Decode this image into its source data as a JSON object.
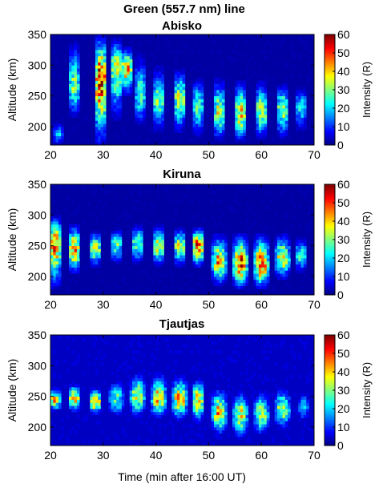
{
  "figure": {
    "title": "Green (557.7 nm) line",
    "xlabel": "Time (min after 16:00 UT)",
    "ylabel": "Altitude (km)",
    "colorbar_label": "Intensity (R)"
  },
  "chart_data": [
    {
      "type": "heatmap",
      "title": "Abisko",
      "xlabel": "",
      "ylabel": "Altitude (km)",
      "xlim": [
        20,
        70
      ],
      "ylim": [
        170,
        350
      ],
      "xticks": [
        20,
        30,
        40,
        50,
        60,
        70
      ],
      "yticks": [
        200,
        250,
        300,
        350
      ],
      "colorbar": {
        "label": "Intensity (R)",
        "range": [
          0,
          60
        ],
        "ticks": [
          0,
          10,
          20,
          30,
          40,
          50,
          60
        ],
        "colormap": "jet"
      },
      "background_level": 2,
      "bursts": [
        {
          "t": 21.5,
          "width": 1.0,
          "alt_lo": 170,
          "alt_hi": 210,
          "peak": 22,
          "peak_alt": 185
        },
        {
          "t": 24.5,
          "width": 1.4,
          "alt_lo": 215,
          "alt_hi": 340,
          "peak": 35,
          "peak_alt": 265
        },
        {
          "t": 29.5,
          "width": 1.6,
          "alt_lo": 170,
          "alt_hi": 350,
          "peak": 60,
          "peak_alt": 280
        },
        {
          "t": 32.5,
          "width": 1.6,
          "alt_lo": 210,
          "alt_hi": 345,
          "peak": 42,
          "peak_alt": 300
        },
        {
          "t": 34.5,
          "width": 1.6,
          "alt_lo": 250,
          "alt_hi": 330,
          "peak": 48,
          "peak_alt": 295
        },
        {
          "t": 37.0,
          "width": 1.4,
          "alt_lo": 200,
          "alt_hi": 320,
          "peak": 30,
          "peak_alt": 250
        },
        {
          "t": 40.5,
          "width": 1.6,
          "alt_lo": 190,
          "alt_hi": 300,
          "peak": 34,
          "peak_alt": 240
        },
        {
          "t": 44.5,
          "width": 1.6,
          "alt_lo": 190,
          "alt_hi": 295,
          "peak": 40,
          "peak_alt": 245
        },
        {
          "t": 48.0,
          "width": 1.6,
          "alt_lo": 180,
          "alt_hi": 280,
          "peak": 30,
          "peak_alt": 235
        },
        {
          "t": 52.0,
          "width": 1.6,
          "alt_lo": 175,
          "alt_hi": 280,
          "peak": 40,
          "peak_alt": 225
        },
        {
          "t": 56.0,
          "width": 1.6,
          "alt_lo": 175,
          "alt_hi": 275,
          "peak": 45,
          "peak_alt": 220
        },
        {
          "t": 60.0,
          "width": 1.6,
          "alt_lo": 180,
          "alt_hi": 275,
          "peak": 40,
          "peak_alt": 225
        },
        {
          "t": 64.0,
          "width": 1.6,
          "alt_lo": 180,
          "alt_hi": 270,
          "peak": 38,
          "peak_alt": 230
        },
        {
          "t": 67.5,
          "width": 1.4,
          "alt_lo": 190,
          "alt_hi": 265,
          "peak": 26,
          "peak_alt": 235
        }
      ]
    },
    {
      "type": "heatmap",
      "title": "Kiruna",
      "xlabel": "",
      "ylabel": "Altitude (km)",
      "xlim": [
        20,
        70
      ],
      "ylim": [
        170,
        350
      ],
      "xticks": [
        20,
        30,
        40,
        50,
        60,
        70
      ],
      "yticks": [
        200,
        250,
        300,
        350
      ],
      "colorbar": {
        "label": "Intensity (R)",
        "range": [
          0,
          60
        ],
        "ticks": [
          0,
          10,
          20,
          30,
          40,
          50,
          60
        ],
        "colormap": "jet"
      },
      "background_level": 2,
      "bursts": [
        {
          "t": 20.8,
          "width": 1.6,
          "alt_lo": 180,
          "alt_hi": 300,
          "peak": 52,
          "peak_alt": 255
        },
        {
          "t": 24.5,
          "width": 1.6,
          "alt_lo": 205,
          "alt_hi": 285,
          "peak": 50,
          "peak_alt": 245
        },
        {
          "t": 28.5,
          "width": 1.6,
          "alt_lo": 215,
          "alt_hi": 275,
          "peak": 40,
          "peak_alt": 245
        },
        {
          "t": 32.5,
          "width": 1.6,
          "alt_lo": 220,
          "alt_hi": 280,
          "peak": 32,
          "peak_alt": 250
        },
        {
          "t": 36.5,
          "width": 1.6,
          "alt_lo": 220,
          "alt_hi": 285,
          "peak": 34,
          "peak_alt": 255
        },
        {
          "t": 40.5,
          "width": 1.6,
          "alt_lo": 215,
          "alt_hi": 285,
          "peak": 40,
          "peak_alt": 250
        },
        {
          "t": 44.5,
          "width": 1.6,
          "alt_lo": 215,
          "alt_hi": 280,
          "peak": 40,
          "peak_alt": 250
        },
        {
          "t": 48.0,
          "width": 1.6,
          "alt_lo": 215,
          "alt_hi": 280,
          "peak": 55,
          "peak_alt": 250
        },
        {
          "t": 52.0,
          "width": 1.8,
          "alt_lo": 185,
          "alt_hi": 270,
          "peak": 50,
          "peak_alt": 225
        },
        {
          "t": 56.0,
          "width": 1.8,
          "alt_lo": 180,
          "alt_hi": 270,
          "peak": 58,
          "peak_alt": 220
        },
        {
          "t": 60.0,
          "width": 1.8,
          "alt_lo": 180,
          "alt_hi": 270,
          "peak": 58,
          "peak_alt": 220
        },
        {
          "t": 64.0,
          "width": 1.8,
          "alt_lo": 195,
          "alt_hi": 270,
          "peak": 46,
          "peak_alt": 230
        },
        {
          "t": 67.5,
          "width": 1.4,
          "alt_lo": 205,
          "alt_hi": 265,
          "peak": 30,
          "peak_alt": 235
        }
      ]
    },
    {
      "type": "heatmap",
      "title": "Tjautjas",
      "xlabel": "Time (min after 16:00 UT)",
      "ylabel": "Altitude (km)",
      "xlim": [
        20,
        70
      ],
      "ylim": [
        170,
        350
      ],
      "xticks": [
        20,
        30,
        40,
        50,
        60,
        70
      ],
      "yticks": [
        200,
        250,
        300,
        350
      ],
      "colorbar": {
        "label": "Intensity (R)",
        "range": [
          0,
          60
        ],
        "ticks": [
          0,
          10,
          20,
          30,
          40,
          50,
          60
        ],
        "colormap": "jet"
      },
      "background_level": 4,
      "bursts": [
        {
          "t": 20.8,
          "width": 1.4,
          "alt_lo": 225,
          "alt_hi": 265,
          "peak": 45,
          "peak_alt": 245
        },
        {
          "t": 24.5,
          "width": 1.6,
          "alt_lo": 225,
          "alt_hi": 270,
          "peak": 48,
          "peak_alt": 248
        },
        {
          "t": 28.5,
          "width": 1.6,
          "alt_lo": 220,
          "alt_hi": 265,
          "peak": 48,
          "peak_alt": 240
        },
        {
          "t": 32.5,
          "width": 1.8,
          "alt_lo": 215,
          "alt_hi": 280,
          "peak": 32,
          "peak_alt": 245
        },
        {
          "t": 36.5,
          "width": 1.8,
          "alt_lo": 215,
          "alt_hi": 290,
          "peak": 42,
          "peak_alt": 250
        },
        {
          "t": 40.5,
          "width": 1.8,
          "alt_lo": 210,
          "alt_hi": 290,
          "peak": 46,
          "peak_alt": 248
        },
        {
          "t": 44.5,
          "width": 1.8,
          "alt_lo": 210,
          "alt_hi": 285,
          "peak": 50,
          "peak_alt": 245
        },
        {
          "t": 48.0,
          "width": 1.6,
          "alt_lo": 205,
          "alt_hi": 280,
          "peak": 44,
          "peak_alt": 245
        },
        {
          "t": 52.0,
          "width": 1.8,
          "alt_lo": 185,
          "alt_hi": 265,
          "peak": 48,
          "peak_alt": 225
        },
        {
          "t": 56.0,
          "width": 1.8,
          "alt_lo": 180,
          "alt_hi": 260,
          "peak": 42,
          "peak_alt": 220
        },
        {
          "t": 60.0,
          "width": 1.8,
          "alt_lo": 185,
          "alt_hi": 260,
          "peak": 40,
          "peak_alt": 222
        },
        {
          "t": 64.0,
          "width": 1.8,
          "alt_lo": 195,
          "alt_hi": 265,
          "peak": 40,
          "peak_alt": 230
        },
        {
          "t": 68.0,
          "width": 1.2,
          "alt_lo": 205,
          "alt_hi": 260,
          "peak": 22,
          "peak_alt": 235
        }
      ]
    }
  ]
}
